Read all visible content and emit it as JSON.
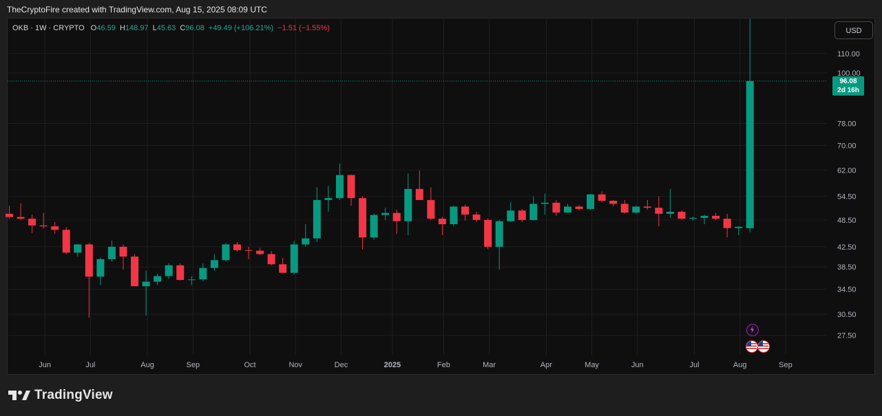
{
  "header": {
    "title": "TheCryptoFire created with TradingView.com, Aug 15, 2025 08:09 UTC"
  },
  "legend": {
    "symbol": "OKB · 1W · CRYPTO",
    "o_label": "O",
    "o_value": "46.59",
    "h_label": "H",
    "h_value": "148.97",
    "l_label": "L",
    "l_value": "45.63",
    "c_label": "C",
    "c_value": "96.08",
    "change": "+49.49 (+106.21%)",
    "change2": "−1.51 (−1.55%)"
  },
  "currency": "USD",
  "price_tag": {
    "price": "96.08",
    "countdown": "2d 16h"
  },
  "footer": {
    "brand": "TradingView"
  },
  "colors": {
    "up": "#089981",
    "down": "#f23645",
    "background": "#0f0f0f",
    "grid": "#1f1f1f",
    "text": "#b2b5be"
  },
  "icons": [
    "lightning-event-icon",
    "us-flag-event-icon",
    "us-flag-event-icon"
  ],
  "chart_data": {
    "type": "candlestick",
    "y_scale": "log",
    "y_ticks": [
      "110.00",
      "100.00",
      "78.00",
      "70.00",
      "62.00",
      "54.50",
      "48.50",
      "42.50",
      "38.50",
      "34.50",
      "30.50",
      "27.50"
    ],
    "x_labels": [
      "Jun",
      "Jul",
      "Aug",
      "Sep",
      "Oct",
      "Nov",
      "Dec",
      "2025",
      "Feb",
      "Mar",
      "Apr",
      "May",
      "Jun",
      "Jul",
      "Aug",
      "Sep"
    ],
    "last_price": 96.08,
    "candles": [
      [
        50.0,
        52.0,
        48.8,
        49.2
      ],
      [
        49.2,
        52.6,
        48.5,
        48.8
      ],
      [
        48.8,
        49.8,
        45.5,
        47.2
      ],
      [
        47.2,
        50.2,
        46.5,
        47.0
      ],
      [
        47.0,
        48.0,
        45.3,
        46.2
      ],
      [
        46.2,
        46.8,
        41.0,
        41.3
      ],
      [
        41.3,
        43.0,
        40.5,
        43.0
      ],
      [
        43.0,
        43.3,
        30.0,
        36.7
      ],
      [
        36.7,
        40.3,
        35.2,
        40.0
      ],
      [
        40.0,
        43.8,
        39.5,
        42.5
      ],
      [
        42.5,
        43.0,
        38.0,
        40.5
      ],
      [
        40.5,
        41.0,
        35.0,
        35.0
      ],
      [
        35.0,
        37.8,
        30.3,
        35.8
      ],
      [
        35.8,
        37.2,
        35.2,
        36.8
      ],
      [
        36.8,
        39.2,
        36.3,
        38.8
      ],
      [
        38.8,
        39.2,
        36.0,
        36.1
      ],
      [
        36.1,
        36.8,
        35.2,
        36.2
      ],
      [
        36.2,
        39.2,
        35.9,
        38.3
      ],
      [
        38.3,
        41.0,
        37.8,
        39.8
      ],
      [
        39.8,
        43.3,
        39.5,
        43.0
      ],
      [
        43.0,
        43.5,
        41.5,
        41.8
      ],
      [
        41.8,
        42.5,
        40.0,
        41.7
      ],
      [
        41.7,
        42.3,
        40.8,
        41.0
      ],
      [
        41.0,
        41.6,
        38.8,
        39.0
      ],
      [
        39.0,
        40.2,
        37.3,
        37.4
      ],
      [
        37.4,
        43.8,
        37.1,
        43.0
      ],
      [
        43.0,
        47.5,
        42.5,
        44.3
      ],
      [
        44.3,
        57.0,
        43.5,
        53.5
      ],
      [
        53.5,
        57.3,
        50.5,
        54.0
      ],
      [
        54.0,
        64.0,
        53.5,
        60.5
      ],
      [
        60.5,
        60.6,
        52.0,
        54.0
      ],
      [
        54.0,
        54.5,
        42.0,
        44.5
      ],
      [
        44.5,
        50.0,
        44.0,
        49.7
      ],
      [
        49.7,
        51.5,
        48.5,
        50.2
      ],
      [
        50.2,
        51.0,
        45.3,
        48.2
      ],
      [
        48.2,
        61.0,
        45.0,
        56.5
      ],
      [
        56.5,
        61.8,
        53.5,
        53.5
      ],
      [
        53.5,
        57.0,
        48.5,
        48.8
      ],
      [
        48.8,
        49.3,
        45.0,
        47.5
      ],
      [
        47.5,
        52.0,
        47.0,
        51.8
      ],
      [
        51.8,
        52.3,
        48.4,
        49.8
      ],
      [
        49.8,
        50.5,
        48.0,
        48.5
      ],
      [
        48.5,
        48.9,
        42.0,
        42.5
      ],
      [
        42.5,
        48.6,
        38.0,
        48.2
      ],
      [
        48.2,
        53.0,
        48.0,
        50.8
      ],
      [
        50.8,
        51.2,
        48.0,
        48.5
      ],
      [
        48.5,
        54.5,
        48.3,
        52.5
      ],
      [
        52.5,
        55.2,
        49.8,
        52.8
      ],
      [
        52.8,
        53.5,
        49.5,
        50.3
      ],
      [
        50.3,
        52.5,
        50.2,
        51.8
      ],
      [
        51.8,
        52.2,
        50.8,
        51.2
      ],
      [
        51.2,
        55.2,
        51.0,
        55.0
      ],
      [
        55.0,
        55.8,
        53.0,
        53.3
      ],
      [
        53.3,
        53.5,
        51.8,
        52.5
      ],
      [
        52.5,
        53.5,
        50.0,
        50.3
      ],
      [
        50.3,
        52.0,
        50.0,
        51.8
      ],
      [
        51.8,
        53.5,
        51.0,
        51.5
      ],
      [
        51.5,
        54.5,
        47.0,
        50.0
      ],
      [
        50.0,
        56.5,
        49.0,
        50.5
      ],
      [
        50.5,
        50.8,
        48.5,
        48.8
      ],
      [
        48.8,
        49.3,
        48.3,
        49.0
      ],
      [
        49.0,
        49.8,
        47.5,
        49.5
      ],
      [
        49.5,
        50.2,
        48.5,
        48.8
      ],
      [
        48.8,
        50.0,
        44.5,
        46.6
      ],
      [
        46.6,
        47.0,
        45.0,
        46.9
      ],
      [
        46.59,
        148.97,
        45.63,
        96.08
      ]
    ]
  }
}
